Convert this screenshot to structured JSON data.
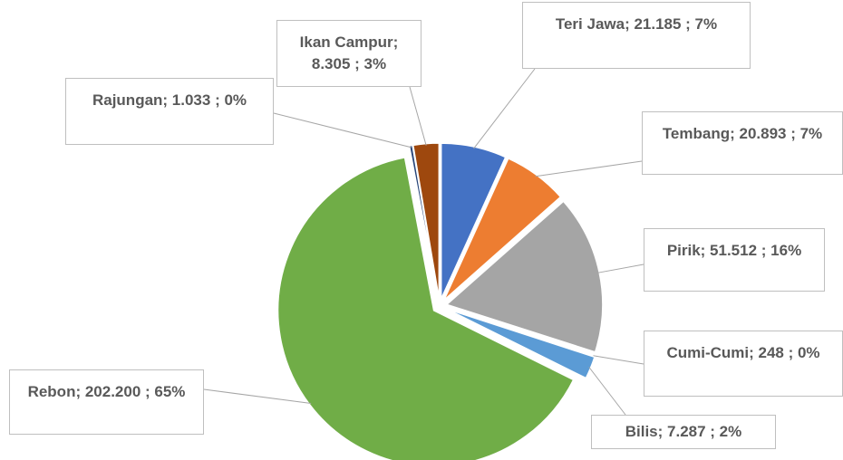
{
  "chart_data": {
    "type": "pie",
    "categories": [
      "Teri Jawa",
      "Tembang",
      "Pirik",
      "Cumi-Cumi",
      "Bilis",
      "Rebon",
      "Rajungan",
      "Ikan Campur"
    ],
    "values": [
      21185,
      20893,
      51512,
      248,
      7287,
      202200,
      1033,
      8305
    ],
    "value_labels": [
      "Teri Jawa;  21.185 ; 7%",
      "Tembang;  20.893 ; 7%",
      "Pirik;  51.512 ; 16%",
      "Cumi-Cumi;  248 ; 0%",
      "Bilis;  7.287 ; 2%",
      "Rebon;  202.200 ; 65%",
      "Rajungan;  1.033 ; 0%",
      "Ikan Campur; 8.305 ; 3%"
    ],
    "colors": [
      "#4472c4",
      "#ed7d31",
      "#a5a5a5",
      "#ffc000",
      "#5b9bd5",
      "#70ad47",
      "#264478",
      "#9e480e"
    ]
  }
}
